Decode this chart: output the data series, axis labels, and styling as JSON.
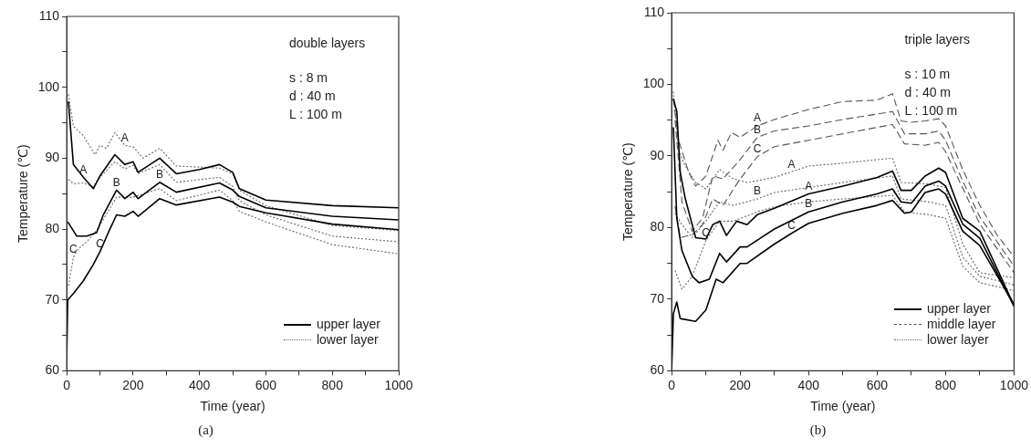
{
  "chart_data": [
    {
      "type": "line",
      "title": "(a)",
      "xlabel": "Time (year)",
      "ylabel": "Temperature (℃)",
      "xlim": [
        0,
        1000
      ],
      "ylim": [
        60,
        110
      ],
      "xticks": [
        0,
        {
          "value": 100,
          "label": null
        },
        200,
        {
          "value": 300,
          "label": null
        },
        400,
        {
          "value": 500,
          "label": null
        },
        600,
        {
          "value": 700,
          "label": null
        },
        800,
        {
          "value": 900,
          "label": null
        },
        1000
      ],
      "yticks": [
        60,
        {
          "value": 65,
          "label": null
        },
        70,
        {
          "value": 75,
          "label": null
        },
        80,
        {
          "value": 85,
          "label": null
        },
        90,
        {
          "value": 95,
          "label": null
        },
        100,
        {
          "value": 105,
          "label": null
        },
        110
      ],
      "grid": false,
      "legend": "bottom right",
      "marker": "none",
      "series": [
        {
          "name": "upper layer",
          "color": "#000000",
          "line_style": "solid",
          "x": [
            5,
            20,
            50,
            80,
            100,
            145,
            175,
            200,
            215,
            280,
            330,
            400,
            460,
            500,
            520,
            600,
            800,
            1000
          ],
          "values": [
            98,
            89.1,
            87.3,
            85.7,
            87.5,
            90.5,
            89.1,
            89.5,
            88,
            90,
            87.8,
            88.4,
            89.1,
            88,
            85.7,
            84.1,
            83.3,
            83
          ]
        },
        {
          "color": "#000000",
          "line_style": "solid",
          "x": [
            3,
            10,
            30,
            60,
            90,
            110,
            150,
            175,
            200,
            215,
            280,
            330,
            460,
            500,
            520,
            600,
            800,
            1000
          ],
          "values": [
            81,
            80.5,
            79,
            79,
            79.5,
            82,
            85.5,
            84.3,
            85.2,
            84.3,
            86.6,
            85.2,
            86.5,
            85.5,
            84.6,
            83,
            81.8,
            81.3
          ]
        },
        {
          "color": "#000000",
          "line_style": "solid",
          "x": [
            0,
            3,
            20,
            50,
            80,
            100,
            130,
            150,
            175,
            200,
            215,
            280,
            330,
            460,
            500,
            520,
            600,
            800,
            1000
          ],
          "values": [
            62,
            70,
            70.9,
            72.7,
            75,
            76.8,
            80,
            82,
            81.8,
            82.5,
            81.8,
            84.3,
            83.4,
            84.5,
            83.8,
            83.2,
            82.3,
            80.7,
            79.9
          ]
        },
        {
          "name": "lower layer",
          "color": "#666666",
          "line_style": "dotted",
          "x": [
            5,
            20,
            50,
            85,
            100,
            120,
            145,
            175,
            200,
            230,
            280,
            330,
            460,
            500,
            520,
            600,
            800,
            1000
          ],
          "values": [
            99,
            94.5,
            93.2,
            90.5,
            91.8,
            91.4,
            93.6,
            91.8,
            91.6,
            90,
            91.4,
            88.9,
            88.6,
            87.8,
            85.5,
            83.3,
            80.5,
            79.8
          ]
        },
        {
          "color": "#666666",
          "line_style": "dotted",
          "x": [
            5,
            20,
            50,
            80,
            100,
            145,
            175,
            200,
            215,
            280,
            330,
            460,
            500,
            520,
            600,
            800,
            1000
          ],
          "values": [
            87,
            86.4,
            86.5,
            86,
            87.3,
            89.5,
            88.5,
            89,
            87.8,
            89.1,
            86.6,
            87.3,
            86,
            84,
            82,
            79,
            78.2
          ]
        },
        {
          "color": "#666666",
          "line_style": "dotted",
          "x": [
            5,
            20,
            30,
            60,
            90,
            150,
            200,
            280,
            330,
            460,
            500,
            520,
            600,
            800,
            1000
          ],
          "values": [
            72,
            76,
            77,
            78.2,
            79.8,
            84.5,
            84.5,
            85.7,
            84,
            85.5,
            84,
            82.5,
            81,
            77.8,
            76.5
          ]
        }
      ],
      "annotations": [
        "double layers",
        "s : 8 m",
        "d : 40 m",
        "L : 100 m",
        {
          "text": "A",
          "x": 175,
          "y": 91.8
        },
        {
          "text": "A",
          "x": 50,
          "y": 87.3
        },
        {
          "text": "B",
          "x": 150,
          "y": 85.5
        },
        {
          "text": "B",
          "x": 280,
          "y": 86.6
        },
        {
          "text": "C",
          "x": 20,
          "y": 76
        },
        {
          "text": "C",
          "x": 100,
          "y": 76.8
        }
      ]
    },
    {
      "type": "line",
      "title": "(b)",
      "xlabel": "Time (year)",
      "ylabel": "Temperature (℃)",
      "xlim": [
        0,
        1000
      ],
      "ylim": [
        60,
        110
      ],
      "xticks": [
        0,
        {
          "value": 100,
          "label": null
        },
        200,
        {
          "value": 300,
          "label": null
        },
        400,
        {
          "value": 500,
          "label": null
        },
        600,
        {
          "value": 700,
          "label": null
        },
        800,
        {
          "value": 900,
          "label": null
        },
        1000
      ],
      "yticks": [
        60,
        {
          "value": 65,
          "label": null
        },
        70,
        {
          "value": 75,
          "label": null
        },
        80,
        {
          "value": 85,
          "label": null
        },
        90,
        {
          "value": 95,
          "label": null
        },
        100,
        {
          "value": 105,
          "label": null
        },
        110
      ],
      "grid": false,
      "legend": "bottom right",
      "marker": "none",
      "series": [
        {
          "name": "upper layer",
          "color": "#000000",
          "line_style": "solid",
          "x": [
            5,
            15,
            25,
            40,
            70,
            100,
            120,
            140,
            160,
            190,
            220,
            250,
            300,
            400,
            500,
            600,
            645,
            670,
            700,
            740,
            780,
            800,
            850,
            900,
            1000
          ],
          "values": [
            98,
            96.2,
            87.7,
            84,
            78.6,
            78.4,
            80.4,
            80.9,
            78.9,
            80.9,
            80.4,
            81.8,
            82.7,
            84.7,
            85.8,
            87,
            87.9,
            85.2,
            85.2,
            87.2,
            88.3,
            87.7,
            81.3,
            79.5,
            69.1
          ]
        },
        {
          "color": "#000000",
          "line_style": "solid",
          "x": [
            5,
            15,
            30,
            60,
            80,
            110,
            140,
            160,
            200,
            220,
            300,
            400,
            500,
            600,
            645,
            670,
            700,
            740,
            780,
            800,
            850,
            900,
            1000
          ],
          "values": [
            94,
            81.3,
            76.8,
            73.2,
            72.3,
            72.8,
            76.4,
            75.2,
            77.3,
            77.3,
            79.8,
            82.2,
            83.6,
            84.7,
            85.4,
            83.6,
            83.4,
            85.8,
            86.5,
            85.8,
            80.5,
            78.5,
            69
          ]
        },
        {
          "color": "#000000",
          "line_style": "solid",
          "x": [
            0,
            5,
            15,
            25,
            70,
            100,
            130,
            150,
            200,
            220,
            300,
            350,
            400,
            500,
            600,
            645,
            680,
            700,
            740,
            780,
            800,
            850,
            900,
            1000
          ],
          "values": [
            60,
            68,
            69.6,
            67.3,
            66.9,
            68.5,
            72.8,
            72.3,
            75,
            75,
            77.7,
            79.2,
            80.6,
            82,
            83.1,
            83.8,
            82,
            82.2,
            84.9,
            85.4,
            84.7,
            79.5,
            77.5,
            69.2
          ]
        },
        {
          "name": "middle layer",
          "color": "#555555",
          "line_style": "dashed",
          "x": [
            5,
            20,
            50,
            70,
            100,
            135,
            150,
            175,
            200,
            250,
            300,
            400,
            500,
            600,
            645,
            670,
            700,
            740,
            780,
            800,
            850,
            900,
            950,
            1000
          ],
          "values": [
            98,
            92.2,
            87.7,
            85.8,
            87.2,
            92.2,
            90.8,
            93.3,
            92.6,
            94.2,
            95.1,
            96.5,
            97.6,
            97.8,
            98.7,
            94.9,
            94.7,
            94.9,
            95.2,
            94.2,
            88.1,
            83.1,
            79,
            75.9
          ]
        },
        {
          "color": "#555555",
          "line_style": "dashed",
          "x": [
            10,
            30,
            60,
            90,
            120,
            150,
            200,
            250,
            300,
            400,
            500,
            645,
            680,
            740,
            780,
            800,
            850,
            900,
            1000
          ],
          "values": [
            95,
            83.6,
            79.5,
            81.3,
            87.2,
            86.8,
            89.5,
            92.6,
            93.5,
            94.2,
            95.1,
            96.2,
            93.1,
            93.1,
            93.5,
            92.2,
            86.5,
            81.5,
            74.6
          ]
        },
        {
          "color": "#555555",
          "line_style": "dashed",
          "x": [
            10,
            25,
            60,
            90,
            120,
            150,
            200,
            250,
            300,
            400,
            500,
            645,
            680,
            740,
            780,
            800,
            850,
            900,
            1000
          ],
          "values": [
            83,
            78.6,
            79,
            80.4,
            84,
            83.1,
            86.8,
            89.9,
            91.3,
            92.2,
            93.1,
            94.4,
            91.7,
            91.5,
            91.9,
            90.6,
            85.5,
            80.5,
            73.7
          ]
        },
        {
          "name": "lower layer",
          "color": "#666666",
          "line_style": "dotted",
          "x": [
            5,
            20,
            40,
            70,
            100,
            140,
            180,
            220,
            300,
            350,
            400,
            500,
            645,
            670,
            750,
            800,
            850,
            900,
            1000
          ],
          "values": [
            99,
            90.8,
            88.6,
            86.3,
            85.4,
            88.1,
            86.8,
            86.3,
            87,
            87.8,
            88.6,
            89,
            89.7,
            86.3,
            86.1,
            85.6,
            77.7,
            73.7,
            73
          ]
        },
        {
          "color": "#666666",
          "line_style": "dotted",
          "x": [
            10,
            30,
            60,
            100,
            140,
            180,
            250,
            300,
            400,
            500,
            645,
            670,
            750,
            800,
            850,
            900,
            1000
          ],
          "values": [
            82,
            80.4,
            78.6,
            80.9,
            83.6,
            83.1,
            84,
            84.9,
            85.6,
            86.3,
            87.2,
            84,
            83.6,
            83.1,
            75.9,
            73.2,
            72
          ]
        },
        {
          "color": "#666666",
          "line_style": "dotted",
          "x": [
            10,
            30,
            60,
            100,
            140,
            180,
            250,
            300,
            400,
            500,
            645,
            680,
            750,
            800,
            850,
            900,
            1000
          ],
          "values": [
            74,
            71.4,
            73.2,
            78.2,
            80.9,
            80.9,
            82.2,
            82.9,
            83.6,
            84,
            84.5,
            82.2,
            81.8,
            81.3,
            74.6,
            72.3,
            71.2
          ]
        }
      ],
      "annotations": [
        "triple layers",
        "s : 10 m",
        "d : 40 m",
        "L : 100 m",
        {
          "text": "A",
          "x": 250,
          "y": 94.2
        },
        {
          "text": "B",
          "x": 250,
          "y": 92.6
        },
        {
          "text": "C",
          "x": 250,
          "y": 89.9
        },
        {
          "text": "A",
          "x": 350,
          "y": 87.8
        },
        {
          "text": "A",
          "x": 400,
          "y": 84.7
        },
        {
          "text": "B",
          "x": 250,
          "y": 84
        },
        {
          "text": "B",
          "x": 400,
          "y": 82.2
        },
        {
          "text": "C",
          "x": 100,
          "y": 78.2
        },
        {
          "text": "C",
          "x": 350,
          "y": 79.2
        }
      ]
    }
  ]
}
